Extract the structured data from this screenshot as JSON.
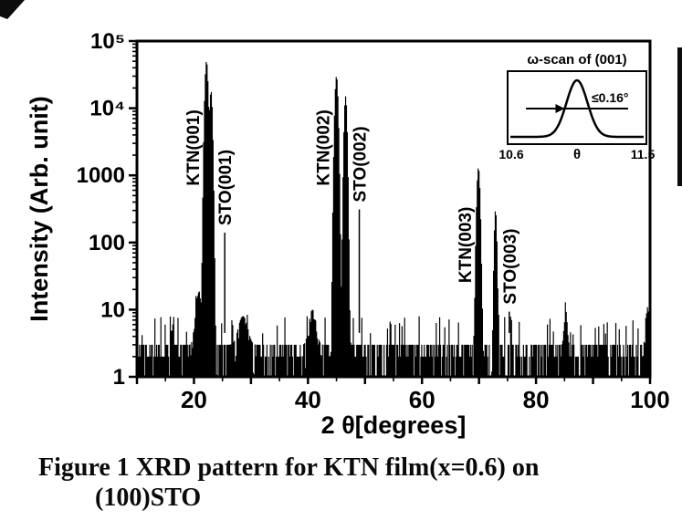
{
  "figure": {
    "caption_line1": "Figure 1 XRD pattern for KTN film(x=0.6) on",
    "caption_line2": "(100)STO"
  },
  "chart_data": {
    "type": "line",
    "title": "",
    "xlabel": "2 θ[degrees]",
    "ylabel": "Intensity (Arb. unit)",
    "x_range": [
      10,
      100
    ],
    "x_major_ticks": [
      20,
      40,
      60,
      80,
      100
    ],
    "x_minor_step": 5,
    "y_scale": "log",
    "y_range": [
      1,
      100000
    ],
    "y_tick_labels": [
      "1",
      "10",
      "100",
      "1000",
      "10⁴",
      "10⁵"
    ],
    "background_noise": {
      "min": 1,
      "typical": 3,
      "spike_max": 8
    },
    "peaks": [
      {
        "label": "KTN(001)",
        "two_theta": 22.2,
        "intensity": 50000,
        "width_deg": 0.5
      },
      {
        "label": "STO(001)",
        "two_theta": 23.0,
        "intensity": 18000,
        "width_deg": 0.45
      },
      {
        "label": "KTN(002)",
        "two_theta": 45.0,
        "intensity": 30000,
        "width_deg": 0.5
      },
      {
        "label": "STO(002)",
        "two_theta": 46.6,
        "intensity": 15000,
        "width_deg": 0.45
      },
      {
        "label": "KTN(003)",
        "two_theta": 69.9,
        "intensity": 1300,
        "width_deg": 0.5
      },
      {
        "label": "STO(003)",
        "two_theta": 72.9,
        "intensity": 300,
        "width_deg": 0.4
      }
    ],
    "minor_peaks": [
      {
        "two_theta": 20.8,
        "intensity": 15,
        "width_deg": 1.0
      },
      {
        "two_theta": 28.6,
        "intensity": 5,
        "width_deg": 1.6
      },
      {
        "two_theta": 40.8,
        "intensity": 7,
        "width_deg": 1.2
      },
      {
        "two_theta": 85.2,
        "intensity": 7,
        "width_deg": 0.5
      },
      {
        "two_theta": 99.6,
        "intensity": 8,
        "width_deg": 0.6
      }
    ],
    "inset": {
      "title": "ω-scan of (001)",
      "xlabel": "θ",
      "x_range": [
        10.6,
        11.5
      ],
      "x_tick_labels": [
        "10.6",
        "11.5"
      ],
      "peak_center": 11.05,
      "fwhm_deg": 0.16,
      "fwhm_annotation": "≤0.16°"
    }
  }
}
